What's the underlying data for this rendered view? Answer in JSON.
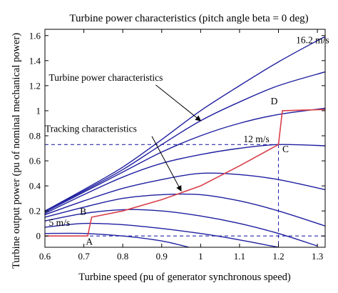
{
  "chart_data": {
    "type": "line",
    "title": "Turbine power characteristics (pitch angle beta = 0 deg)",
    "xlabel": "Turbine speed (pu of generator synchronous speed)",
    "ylabel": "Turbine output power (pu of nominal mechanical power)",
    "xlim": [
      0.6,
      1.32
    ],
    "ylim": [
      -0.09,
      1.65
    ],
    "xticks": [
      "0.6",
      "0.7",
      "0.8",
      "0.9",
      "1",
      "1.1",
      "1.2",
      "1.3"
    ],
    "xtick_values": [
      0.6,
      0.7,
      0.8,
      0.9,
      1.0,
      1.1,
      1.2,
      1.3
    ],
    "yticks": [
      "0",
      "0.2",
      "0.4",
      "0.6",
      "0.8",
      "1",
      "1.2",
      "1.4",
      "1.6"
    ],
    "ytick_values": [
      0,
      0.2,
      0.4,
      0.6,
      0.8,
      1.0,
      1.2,
      1.4,
      1.6
    ],
    "grid": false,
    "colors": {
      "turbine_curves": "#1f1fa0",
      "tracking": "#d8404a",
      "reference": "#2a2aa8"
    },
    "turbine_curves": [
      {
        "points": [
          [
            0.6,
            0.2
          ],
          [
            0.7,
            0.37
          ],
          [
            0.8,
            0.55
          ],
          [
            0.9,
            0.77
          ],
          [
            1.0,
            1.0
          ],
          [
            1.1,
            1.2
          ],
          [
            1.2,
            1.39
          ],
          [
            1.3,
            1.56
          ],
          [
            1.32,
            1.59
          ]
        ]
      },
      {
        "points": [
          [
            0.6,
            0.2
          ],
          [
            0.7,
            0.36
          ],
          [
            0.8,
            0.53
          ],
          [
            0.9,
            0.73
          ],
          [
            1.0,
            0.92
          ],
          [
            1.1,
            1.07
          ],
          [
            1.2,
            1.2
          ],
          [
            1.32,
            1.31
          ]
        ]
      },
      {
        "points": [
          [
            0.6,
            0.19
          ],
          [
            0.7,
            0.35
          ],
          [
            0.8,
            0.51
          ],
          [
            0.9,
            0.67
          ],
          [
            1.0,
            0.8
          ],
          [
            1.1,
            0.9
          ],
          [
            1.2,
            0.97
          ],
          [
            1.32,
            1.02
          ]
        ]
      },
      {
        "points": [
          [
            0.6,
            0.18
          ],
          [
            0.7,
            0.33
          ],
          [
            0.8,
            0.47
          ],
          [
            0.9,
            0.58
          ],
          [
            1.0,
            0.65
          ],
          [
            1.1,
            0.7
          ],
          [
            1.2,
            0.73
          ],
          [
            1.32,
            0.72
          ]
        ]
      },
      {
        "points": [
          [
            0.6,
            0.17
          ],
          [
            0.7,
            0.28
          ],
          [
            0.8,
            0.38
          ],
          [
            0.9,
            0.45
          ],
          [
            1.0,
            0.5
          ],
          [
            1.1,
            0.49
          ],
          [
            1.2,
            0.45
          ],
          [
            1.32,
            0.37
          ]
        ]
      },
      {
        "points": [
          [
            0.6,
            0.15
          ],
          [
            0.7,
            0.23
          ],
          [
            0.8,
            0.3
          ],
          [
            0.9,
            0.33
          ],
          [
            1.0,
            0.33
          ],
          [
            1.1,
            0.28
          ],
          [
            1.2,
            0.2
          ],
          [
            1.32,
            0.08
          ]
        ]
      },
      {
        "points": [
          [
            0.6,
            0.12
          ],
          [
            0.7,
            0.18
          ],
          [
            0.8,
            0.21
          ],
          [
            0.9,
            0.2
          ],
          [
            1.0,
            0.16
          ],
          [
            1.1,
            0.1
          ],
          [
            1.2,
            0.02
          ],
          [
            1.3,
            -0.08
          ]
        ]
      },
      {
        "points": [
          [
            0.6,
            0.07
          ],
          [
            0.7,
            0.1
          ],
          [
            0.8,
            0.09
          ],
          [
            0.9,
            0.06
          ],
          [
            1.0,
            0.02
          ],
          [
            1.08,
            -0.02
          ],
          [
            1.2,
            -0.09
          ]
        ]
      },
      {
        "points": [
          [
            0.6,
            0.02
          ],
          [
            0.7,
            0.02
          ],
          [
            0.8,
            0.0
          ],
          [
            0.9,
            -0.04
          ],
          [
            0.97,
            -0.09
          ]
        ]
      }
    ],
    "tracking_curve": {
      "points": [
        [
          0.6,
          0.0
        ],
        [
          0.7,
          0.0
        ],
        [
          0.71,
          0.0
        ],
        [
          0.72,
          0.15
        ],
        [
          0.8,
          0.2
        ],
        [
          0.9,
          0.29
        ],
        [
          1.0,
          0.4
        ],
        [
          1.1,
          0.56
        ],
        [
          1.2,
          0.73
        ],
        [
          1.21,
          1.0
        ],
        [
          1.32,
          1.01
        ]
      ]
    },
    "reference_lines": [
      {
        "points": [
          [
            0.6,
            0.73
          ],
          [
            1.2,
            0.73
          ]
        ]
      },
      {
        "points": [
          [
            1.2,
            0.73
          ],
          [
            1.2,
            -0.09
          ]
        ]
      },
      {
        "points": [
          [
            0.6,
            0.0
          ],
          [
            1.32,
            0.0
          ]
        ]
      }
    ],
    "labels": [
      {
        "id": "label-16-2",
        "text": "16.2 m/s",
        "x": 1.245,
        "y": 1.54
      },
      {
        "id": "label-12",
        "text": "12 m/s",
        "x": 1.11,
        "y": 0.75
      },
      {
        "id": "label-5",
        "text": "5 m/s",
        "x": 0.61,
        "y": 0.08
      },
      {
        "id": "label-A",
        "text": "A",
        "x": 0.705,
        "y": -0.07
      },
      {
        "id": "label-B",
        "text": "B",
        "x": 0.69,
        "y": 0.17
      },
      {
        "id": "label-C",
        "text": "C",
        "x": 1.21,
        "y": 0.67
      },
      {
        "id": "label-D",
        "text": "D",
        "x": 1.18,
        "y": 1.05
      }
    ],
    "annotations": [
      {
        "id": "turbine-characteristics",
        "text": "Turbine power characteristics",
        "x": 0.61,
        "y": 1.24,
        "arrow_to": [
          1.0,
          0.92
        ]
      },
      {
        "id": "tracking-characteristics",
        "text": "Tracking characteristics",
        "x": 0.6,
        "y": 0.83,
        "arrow_to": [
          0.95,
          0.36
        ]
      }
    ]
  }
}
